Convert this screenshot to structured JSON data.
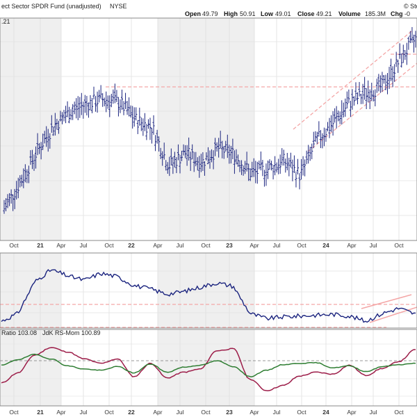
{
  "header": {
    "title": "ect Sector SPDR Fund (unadjusted)",
    "exchange": "NYSE",
    "watermark": "© Sto",
    "corner_label": ".21",
    "open_label": "Open",
    "open_value": "49.79",
    "high_label": "High",
    "high_value": "50.91",
    "low_label": "Low",
    "low_value": "49.01",
    "close_label": "Close",
    "close_value": "49.21",
    "volume_label": "Volume",
    "volume_value": "185.3M",
    "chg_label": "Chg",
    "chg_value": "-0"
  },
  "ratio_legend": {
    "ratio_label": "Ratio 103.08",
    "mom_label": "JdK RS-Mom 100.89"
  },
  "colors": {
    "price": "#1a237e",
    "rs_line": "#1a237e",
    "ratio": "#9c1c48",
    "momentum": "#2e7d32",
    "trend_lines": "#f4a6a6",
    "band_shade": "#efefef"
  },
  "x_labels": [
    "Oct",
    "21",
    "Apr",
    "Jul",
    "Oct",
    "22",
    "Apr",
    "Jul",
    "Oct",
    "23",
    "Apr",
    "Jul",
    "Oct",
    "24",
    "Apr",
    "Jul",
    "Oct"
  ],
  "chart_data": [
    {
      "type": "bar",
      "name": "price",
      "title": "ect Sector SPDR Fund (unadjusted)",
      "x": [
        "2020-10",
        "2020-12",
        "2021-02",
        "2021-04",
        "2021-06",
        "2021-08",
        "2021-10",
        "2021-12",
        "2022-02",
        "2022-04",
        "2022-06",
        "2022-08",
        "2022-10",
        "2022-12",
        "2023-02",
        "2023-04",
        "2023-06",
        "2023-08",
        "2023-10",
        "2023-12",
        "2024-02",
        "2024-04",
        "2024-06",
        "2024-08",
        "2024-10",
        "2024-12"
      ],
      "close": [
        38.5,
        40.2,
        42.1,
        43.7,
        44.6,
        45.1,
        45.4,
        45.2,
        44.1,
        43.6,
        41.2,
        42.0,
        41.4,
        42.3,
        41.9,
        40.7,
        41.0,
        41.5,
        40.6,
        42.8,
        43.9,
        45.2,
        45.8,
        46.2,
        47.8,
        49.2
      ]
    },
    {
      "type": "line",
      "name": "relative-strength",
      "x": [
        "2020-10",
        "2020-12",
        "2021-02",
        "2021-04",
        "2021-06",
        "2021-08",
        "2021-10",
        "2021-12",
        "2022-02",
        "2022-04",
        "2022-06",
        "2022-08",
        "2022-10",
        "2022-12",
        "2023-02",
        "2023-04",
        "2023-06",
        "2023-08",
        "2023-10",
        "2023-12",
        "2024-02",
        "2024-04",
        "2024-06",
        "2024-08",
        "2024-10",
        "2024-12"
      ],
      "values": [
        3,
        12,
        48,
        62,
        55,
        50,
        58,
        54,
        44,
        40,
        34,
        37,
        42,
        47,
        43,
        12,
        6,
        8,
        9,
        10,
        11,
        9,
        3,
        12,
        18,
        11
      ]
    },
    {
      "type": "line",
      "name": "rrg",
      "x": [
        "2020-10",
        "2020-12",
        "2021-02",
        "2021-04",
        "2021-06",
        "2021-08",
        "2021-10",
        "2021-12",
        "2022-02",
        "2022-04",
        "2022-06",
        "2022-08",
        "2022-10",
        "2022-12",
        "2023-02",
        "2023-04",
        "2023-06",
        "2023-08",
        "2023-10",
        "2023-12",
        "2024-02",
        "2024-04",
        "2024-06",
        "2024-08",
        "2024-10",
        "2024-12"
      ],
      "series": [
        {
          "name": "Ratio",
          "values": [
            97.8,
            99.4,
            102.2,
            103.4,
            102.7,
            101.6,
            100.9,
            101.6,
            98.8,
            100.9,
            98.6,
            99.5,
            100.0,
            102.9,
            103.2,
            98.4,
            96.6,
            97.4,
            98.9,
            99.5,
            99.2,
            100.6,
            99.0,
            100.1,
            101.2,
            103.1
          ]
        },
        {
          "name": "JdK RS-Mom",
          "values": [
            100.6,
            101.5,
            102.3,
            101.6,
            100.5,
            100.0,
            99.8,
            100.4,
            99.4,
            100.8,
            99.5,
            100.3,
            100.6,
            101.3,
            100.4,
            98.8,
            99.8,
            100.7,
            100.9,
            101.0,
            100.2,
            100.5,
            99.6,
            100.4,
            100.7,
            100.9
          ]
        }
      ]
    }
  ]
}
